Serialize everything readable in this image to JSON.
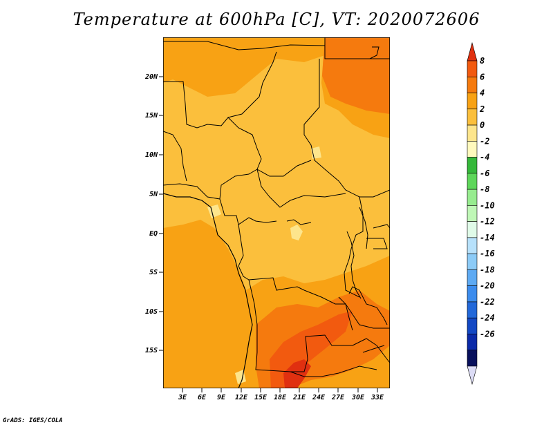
{
  "title": "Temperature at 600hPa [C], VT: 2020072606",
  "credit": "GrADS: IGES/COLA",
  "map": {
    "lat_labels": [
      "20N",
      "15N",
      "10N",
      "5N",
      "EQ",
      "5S",
      "10S",
      "15S"
    ],
    "lon_labels": [
      "3E",
      "6E",
      "9E",
      "12E",
      "15E",
      "18E",
      "21E",
      "24E",
      "27E",
      "30E",
      "33E"
    ]
  },
  "colorbar": {
    "levels": [
      "8",
      "6",
      "4",
      "2",
      "0",
      "-2",
      "-4",
      "-6",
      "-8",
      "-10",
      "-12",
      "-14",
      "-16",
      "-18",
      "-20",
      "-22",
      "-24",
      "-26"
    ],
    "colors": [
      "#e03010",
      "#f25a0f",
      "#f57a0e",
      "#f8a214",
      "#fbbf3c",
      "#fde58c",
      "#fff9bd",
      "#35b83a",
      "#5ed65a",
      "#97ec8f",
      "#bff7b6",
      "#e0fbe8",
      "#b7e1fb",
      "#8ccbf7",
      "#5eaaf3",
      "#3c8ced",
      "#2268d9",
      "#1348c4",
      "#0b2aa8",
      "#08105c",
      "#dcdcf6"
    ]
  }
}
